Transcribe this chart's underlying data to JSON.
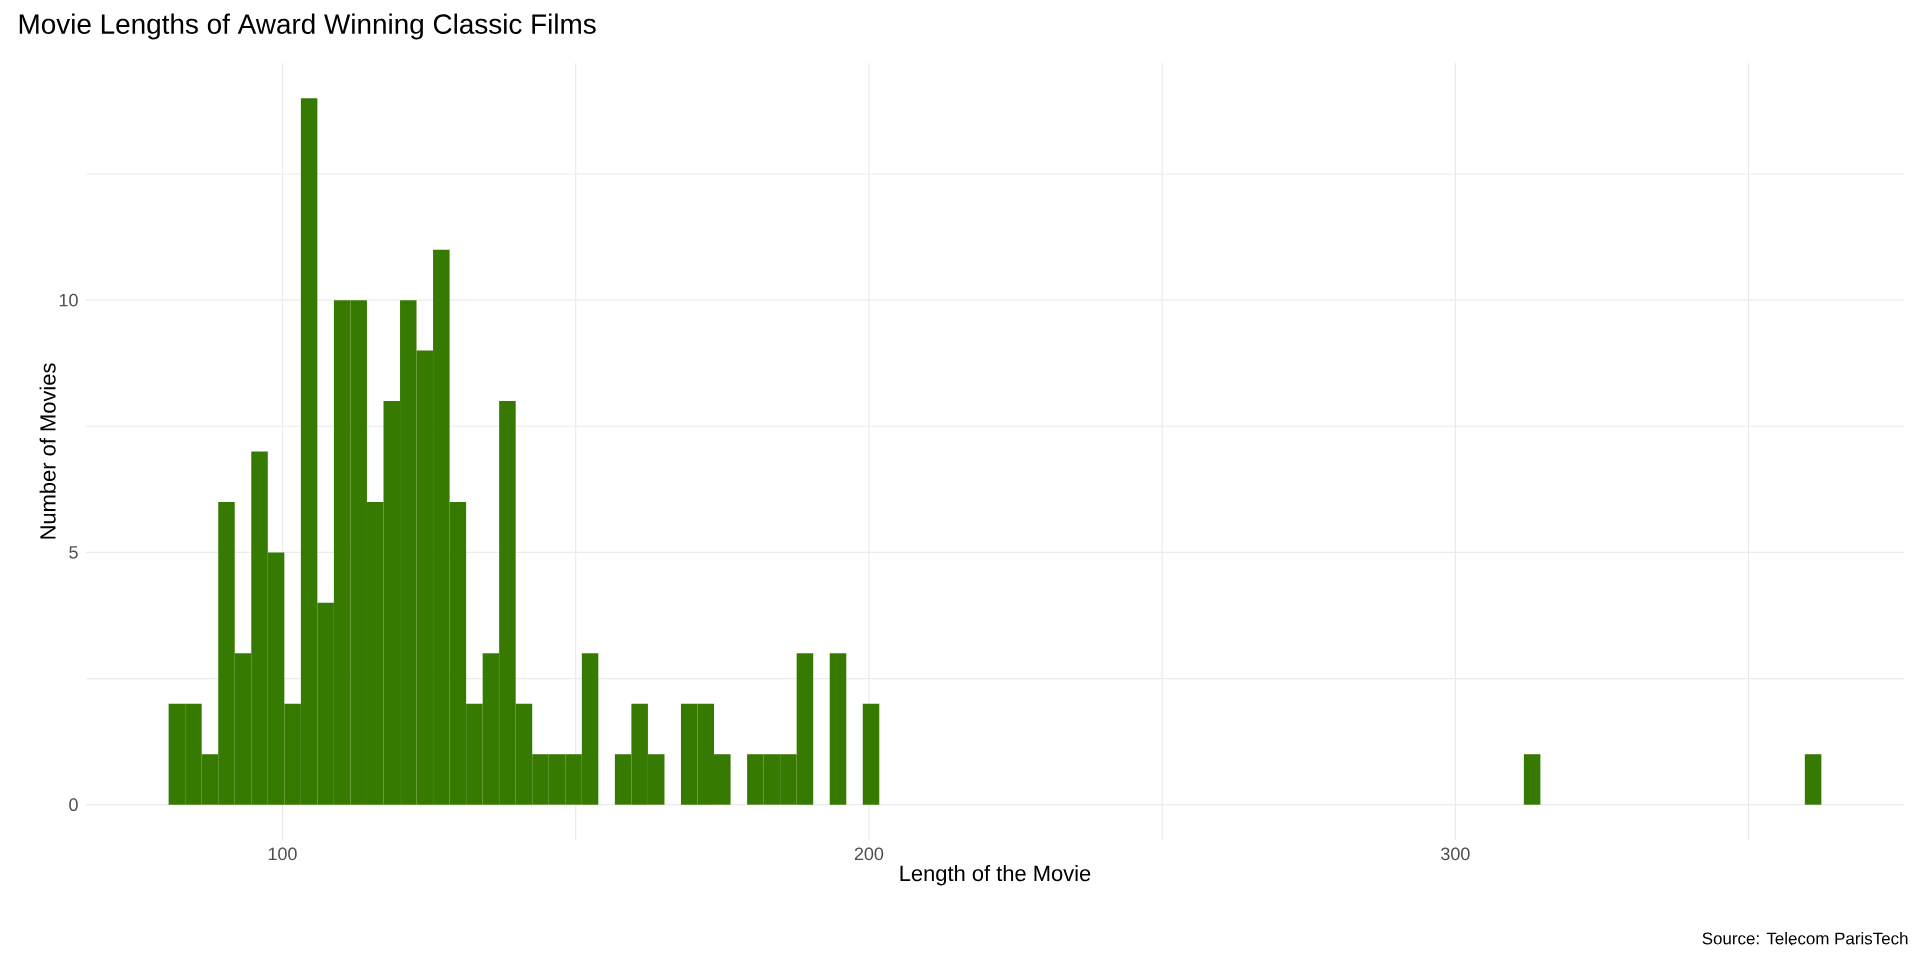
{
  "chart_data": {
    "type": "histogram",
    "title": "Movie Lengths of Award Winning Classic Films",
    "xlabel": "Length of the Movie",
    "ylabel": "Number of Movies",
    "annotations": [
      "Source: Telecom ParisTech"
    ],
    "color": "#377a02",
    "bins": [
      80.59,
      83.41,
      86.23,
      89.05,
      91.86,
      94.68,
      97.5,
      100.32,
      103.14,
      105.95,
      108.77,
      111.59,
      114.41,
      117.23,
      120.05,
      122.86,
      125.68,
      128.5,
      131.32,
      134.14,
      136.95,
      139.77,
      142.59,
      145.41,
      148.23,
      151.05,
      153.86,
      156.68,
      159.5,
      162.32,
      165.14,
      167.95,
      170.77,
      173.59,
      176.41,
      179.23,
      182.05,
      184.86,
      187.68,
      190.5,
      193.32,
      196.14,
      198.95,
      201.77,
      204.59,
      207.41,
      210.23,
      213.05,
      215.86,
      218.68,
      221.5,
      224.32,
      227.14,
      229.95,
      232.77,
      235.59,
      238.41,
      241.23,
      244.05,
      246.86,
      249.68,
      252.5,
      255.32,
      258.14,
      260.95,
      263.77,
      266.59,
      269.41,
      272.23,
      275.05,
      277.86,
      280.68,
      283.5,
      286.32,
      289.14,
      291.95,
      294.77,
      297.59,
      300.41,
      303.23,
      306.05,
      308.86,
      311.68,
      314.5,
      317.32,
      320.14,
      322.95,
      325.77,
      328.59,
      331.41,
      334.23,
      337.05,
      339.86,
      342.68,
      345.5,
      348.32,
      351.14,
      353.95,
      356.77,
      359.59,
      362.41
    ],
    "values": [
      2,
      2,
      1,
      6,
      3,
      7,
      5,
      2,
      14,
      4,
      10,
      10,
      6,
      8,
      10,
      9,
      11,
      6,
      2,
      3,
      8,
      2,
      1,
      1,
      1,
      3,
      0,
      1,
      2,
      1,
      0,
      2,
      2,
      1,
      0,
      1,
      1,
      1,
      3,
      0,
      3,
      0,
      2,
      0,
      0,
      0,
      0,
      0,
      0,
      0,
      0,
      0,
      0,
      0,
      0,
      0,
      0,
      0,
      0,
      0,
      0,
      0,
      0,
      0,
      0,
      0,
      0,
      0,
      0,
      0,
      0,
      0,
      0,
      0,
      0,
      0,
      0,
      0,
      0,
      0,
      0,
      0,
      1,
      0,
      0,
      0,
      0,
      0,
      0,
      0,
      0,
      0,
      0,
      0,
      0,
      0,
      0,
      0,
      0,
      1
    ],
    "xlim": [
      66.5,
      376.5
    ],
    "ylim": [
      -0.7,
      14.7
    ],
    "xticks": [
      100,
      {
        "value": 150,
        "label": null
      },
      200,
      {
        "value": 250,
        "label": null
      },
      300,
      {
        "value": 350,
        "label": null
      }
    ],
    "yticks": [
      0,
      {
        "value": 2.5,
        "label": null
      },
      5,
      {
        "value": 7.5,
        "label": null
      },
      10,
      {
        "value": 12.5,
        "label": null
      }
    ],
    "grid": true
  }
}
